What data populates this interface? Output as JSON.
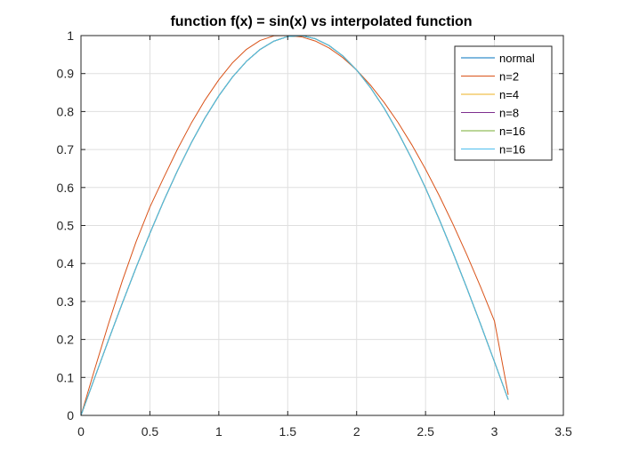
{
  "chart_data": {
    "type": "line",
    "title": "function  f(x) = sin(x) vs interpolated function",
    "xlabel": "",
    "ylabel": "",
    "xlim": [
      0,
      3.5
    ],
    "ylim": [
      0,
      1
    ],
    "xticks": [
      0,
      0.5,
      1,
      1.5,
      2,
      2.5,
      3,
      3.5
    ],
    "yticks": [
      0,
      0.1,
      0.2,
      0.3,
      0.4,
      0.5,
      0.6,
      0.7,
      0.8,
      0.9,
      1
    ],
    "xtick_labels": [
      "0",
      "0.5",
      "1",
      "1.5",
      "2",
      "2.5",
      "3",
      "3.5"
    ],
    "ytick_labels": [
      "0",
      "0.1",
      "0.2",
      "0.3",
      "0.4",
      "0.5",
      "0.6",
      "0.7",
      "0.8",
      "0.9",
      "1"
    ],
    "grid": true,
    "legend_position": "top-right",
    "series": [
      {
        "name": "normal",
        "color": "#0072BD",
        "x": [
          0,
          0.1,
          0.2,
          0.3,
          0.4,
          0.5,
          0.6,
          0.7,
          0.8,
          0.9,
          1.0,
          1.1,
          1.2,
          1.3,
          1.4,
          1.5,
          1.6,
          1.7,
          1.8,
          1.9,
          2.0,
          2.1,
          2.2,
          2.3,
          2.4,
          2.5,
          2.6,
          2.7,
          2.8,
          2.9,
          3.0,
          3.1
        ],
        "y": [
          0,
          0.0998,
          0.1987,
          0.2955,
          0.3894,
          0.4794,
          0.5646,
          0.6442,
          0.7174,
          0.7833,
          0.8415,
          0.8912,
          0.932,
          0.9636,
          0.9854,
          0.9975,
          0.9996,
          0.9917,
          0.9738,
          0.9463,
          0.9093,
          0.8632,
          0.8085,
          0.7457,
          0.6755,
          0.5985,
          0.5155,
          0.4274,
          0.335,
          0.2392,
          0.1411,
          0.0416
        ]
      },
      {
        "name": "n=2",
        "color": "#D95319",
        "x": [
          0,
          0.1,
          0.2,
          0.3,
          0.4,
          0.5,
          0.6,
          0.7,
          0.8,
          0.9,
          1.0,
          1.1,
          1.2,
          1.3,
          1.4,
          1.5,
          1.6,
          1.7,
          1.8,
          1.9,
          2.0,
          2.1,
          2.2,
          2.3,
          2.4,
          2.5,
          2.6,
          2.7,
          2.8,
          2.9,
          3.0,
          3.1
        ],
        "y": [
          0,
          0.1224,
          0.2416,
          0.3543,
          0.4575,
          0.5485,
          0.6258,
          0.7008,
          0.7692,
          0.8304,
          0.8837,
          0.9286,
          0.9636,
          0.9873,
          0.9993,
          1.0,
          0.9966,
          0.9857,
          0.9674,
          0.9418,
          0.9093,
          0.8698,
          0.8237,
          0.7713,
          0.7127,
          0.6482,
          0.5781,
          0.5028,
          0.4225,
          0.3376,
          0.2485,
          0.0545
        ]
      },
      {
        "name": "n=4",
        "color": "#EDB120",
        "x": [
          0,
          0.1,
          0.2,
          0.3,
          0.4,
          0.5,
          0.6,
          0.7,
          0.8,
          0.9,
          1.0,
          1.1,
          1.2,
          1.3,
          1.4,
          1.5,
          1.6,
          1.7,
          1.8,
          1.9,
          2.0,
          2.1,
          2.2,
          2.3,
          2.4,
          2.5,
          2.6,
          2.7,
          2.8,
          2.9,
          3.0,
          3.1
        ],
        "y": [
          0,
          0.0998,
          0.1987,
          0.2955,
          0.3894,
          0.4794,
          0.5646,
          0.6442,
          0.7174,
          0.7833,
          0.8415,
          0.8912,
          0.932,
          0.9636,
          0.9854,
          0.9975,
          0.9996,
          0.9917,
          0.9738,
          0.9463,
          0.9093,
          0.8632,
          0.8085,
          0.7457,
          0.6755,
          0.5985,
          0.5155,
          0.4274,
          0.335,
          0.2392,
          0.1411,
          0.0416
        ]
      },
      {
        "name": "n=8",
        "color": "#7E2F8E",
        "x": [
          0,
          0.1,
          0.2,
          0.3,
          0.4,
          0.5,
          0.6,
          0.7,
          0.8,
          0.9,
          1.0,
          1.1,
          1.2,
          1.3,
          1.4,
          1.5,
          1.6,
          1.7,
          1.8,
          1.9,
          2.0,
          2.1,
          2.2,
          2.3,
          2.4,
          2.5,
          2.6,
          2.7,
          2.8,
          2.9,
          3.0,
          3.1
        ],
        "y": [
          0,
          0.0998,
          0.1987,
          0.2955,
          0.3894,
          0.4794,
          0.5646,
          0.6442,
          0.7174,
          0.7833,
          0.8415,
          0.8912,
          0.932,
          0.9636,
          0.9854,
          0.9975,
          0.9996,
          0.9917,
          0.9738,
          0.9463,
          0.9093,
          0.8632,
          0.8085,
          0.7457,
          0.6755,
          0.5985,
          0.5155,
          0.4274,
          0.335,
          0.2392,
          0.1411,
          0.0416
        ]
      },
      {
        "name": "n=16",
        "color": "#77AC30",
        "x": [
          0,
          0.1,
          0.2,
          0.3,
          0.4,
          0.5,
          0.6,
          0.7,
          0.8,
          0.9,
          1.0,
          1.1,
          1.2,
          1.3,
          1.4,
          1.5,
          1.6,
          1.7,
          1.8,
          1.9,
          2.0,
          2.1,
          2.2,
          2.3,
          2.4,
          2.5,
          2.6,
          2.7,
          2.8,
          2.9,
          3.0,
          3.1
        ],
        "y": [
          0,
          0.0998,
          0.1987,
          0.2955,
          0.3894,
          0.4794,
          0.5646,
          0.6442,
          0.7174,
          0.7833,
          0.8415,
          0.8912,
          0.932,
          0.9636,
          0.9854,
          0.9975,
          0.9996,
          0.9917,
          0.9738,
          0.9463,
          0.9093,
          0.8632,
          0.8085,
          0.7457,
          0.6755,
          0.5985,
          0.5155,
          0.4274,
          0.335,
          0.2392,
          0.1411,
          0.0416
        ]
      },
      {
        "name": "n=16",
        "color": "#4DBEEE",
        "x": [
          0,
          0.1,
          0.2,
          0.3,
          0.4,
          0.5,
          0.6,
          0.7,
          0.8,
          0.9,
          1.0,
          1.1,
          1.2,
          1.3,
          1.4,
          1.5,
          1.6,
          1.7,
          1.8,
          1.9,
          2.0,
          2.1,
          2.2,
          2.3,
          2.4,
          2.5,
          2.6,
          2.7,
          2.8,
          2.9,
          3.0,
          3.1
        ],
        "y": [
          0,
          0.0998,
          0.1987,
          0.2955,
          0.3894,
          0.4794,
          0.5646,
          0.6442,
          0.7174,
          0.7833,
          0.8415,
          0.8912,
          0.932,
          0.9636,
          0.9854,
          0.9975,
          0.9996,
          0.9917,
          0.9738,
          0.9463,
          0.9093,
          0.8632,
          0.8085,
          0.7457,
          0.6755,
          0.5985,
          0.5155,
          0.4274,
          0.335,
          0.2392,
          0.1411,
          0.0416
        ]
      }
    ]
  }
}
